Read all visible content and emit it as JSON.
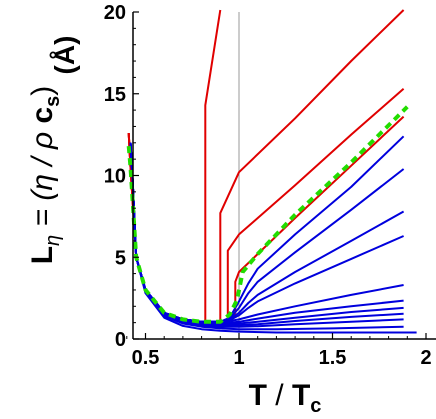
{
  "chart_data": {
    "type": "line",
    "xlabel": {
      "main": "T",
      "slash": " / ",
      "sub_main": "T",
      "sub": "c"
    },
    "ylabel": {
      "L": "L",
      "L_sub": "η",
      "eq": " = (η / ρ ",
      "c": "c",
      "c_sub": "s",
      "close": ")",
      "unit": "(Å)"
    },
    "xlim": [
      0.3,
      2.0
    ],
    "ylim": [
      0,
      20
    ],
    "xticks": [
      {
        "v": 0.5,
        "label": "0.5"
      },
      {
        "v": 1.0,
        "label": "1"
      },
      {
        "v": 1.5,
        "label": "1.5"
      },
      {
        "v": 2.0,
        "label": "2"
      }
    ],
    "yticks": [
      {
        "v": 0,
        "label": "0"
      },
      {
        "v": 5,
        "label": "5"
      },
      {
        "v": 10,
        "label": "10"
      },
      {
        "v": 15,
        "label": "15"
      },
      {
        "v": 20,
        "label": "20"
      }
    ],
    "vline_x": 1.0,
    "colors": {
      "red": "#e00000",
      "blue": "#0000dd",
      "green": "#22dd00",
      "grid": "#999999"
    },
    "common_low_T": {
      "x": [
        0.42,
        0.44,
        0.47,
        0.5,
        0.55,
        0.6,
        0.65,
        0.7,
        0.75,
        0.8
      ],
      "y": [
        12.0,
        7.2,
        4.0,
        2.9,
        2.0,
        1.55,
        1.3,
        1.15,
        1.08,
        1.05
      ]
    },
    "series": [
      {
        "color": "red",
        "style": "solid",
        "x": [
          0.41,
          0.42,
          0.45,
          0.5,
          0.6,
          0.7,
          0.8,
          0.82,
          0.82,
          0.9
        ],
        "y": [
          12.6,
          10.5,
          5.0,
          3.0,
          1.6,
          1.2,
          1.05,
          1.05,
          14.3,
          20.5
        ]
      },
      {
        "color": "red",
        "style": "solid",
        "x": [
          0.41,
          0.42,
          0.45,
          0.5,
          0.6,
          0.7,
          0.8,
          0.88,
          0.9,
          0.9,
          1.0,
          1.3,
          1.6,
          1.88
        ],
        "y": [
          12.6,
          10.5,
          5.0,
          3.0,
          1.6,
          1.2,
          1.05,
          1.05,
          1.05,
          7.7,
          10.2,
          13.5,
          17.0,
          20.3
        ]
      },
      {
        "color": "red",
        "style": "solid",
        "x": [
          0.41,
          0.42,
          0.45,
          0.5,
          0.6,
          0.7,
          0.8,
          0.9,
          0.94,
          0.94,
          1.0,
          1.3,
          1.6,
          1.88
        ],
        "y": [
          12.6,
          10.5,
          5.0,
          3.0,
          1.6,
          1.2,
          1.05,
          1.05,
          1.15,
          5.4,
          6.4,
          9.4,
          12.5,
          15.3
        ]
      },
      {
        "color": "red",
        "style": "solid",
        "x": [
          0.41,
          0.42,
          0.45,
          0.5,
          0.6,
          0.7,
          0.8,
          0.9,
          0.96,
          0.98,
          0.98,
          1.0,
          1.1,
          1.3,
          1.6,
          1.88
        ],
        "y": [
          12.6,
          10.5,
          5.0,
          3.0,
          1.6,
          1.2,
          1.05,
          1.05,
          1.3,
          1.6,
          3.5,
          4.1,
          5.2,
          7.4,
          10.6,
          13.6
        ]
      },
      {
        "color": "green",
        "style": "dashed",
        "x": [
          0.41,
          0.42,
          0.45,
          0.5,
          0.6,
          0.7,
          0.8,
          0.9,
          0.95,
          0.99,
          1.02,
          1.1,
          1.3,
          1.6,
          1.9
        ],
        "y": [
          11.8,
          10.5,
          5.0,
          3.0,
          1.6,
          1.2,
          1.05,
          1.05,
          1.5,
          2.4,
          4.1,
          5.2,
          7.6,
          10.8,
          14.2
        ]
      },
      {
        "color": "blue",
        "style": "solid",
        "x": [
          0.42,
          0.43,
          0.45,
          0.5,
          0.6,
          0.7,
          0.8,
          0.9,
          0.95,
          1.0,
          1.05,
          1.1,
          1.3,
          1.6,
          1.88
        ],
        "y": [
          12.0,
          10.0,
          5.0,
          3.0,
          1.6,
          1.2,
          1.05,
          1.05,
          1.3,
          2.3,
          3.4,
          4.3,
          6.4,
          9.3,
          12.4
        ]
      },
      {
        "color": "blue",
        "style": "solid",
        "x": [
          0.42,
          0.43,
          0.45,
          0.5,
          0.6,
          0.7,
          0.8,
          0.9,
          0.95,
          1.0,
          1.05,
          1.1,
          1.3,
          1.6,
          1.88
        ],
        "y": [
          12.0,
          10.0,
          5.0,
          3.0,
          1.6,
          1.2,
          1.05,
          1.05,
          1.25,
          1.9,
          2.8,
          3.5,
          5.3,
          7.9,
          10.4
        ]
      },
      {
        "color": "blue",
        "style": "solid",
        "x": [
          0.42,
          0.43,
          0.45,
          0.5,
          0.6,
          0.7,
          0.8,
          0.9,
          0.95,
          1.0,
          1.05,
          1.1,
          1.3,
          1.6,
          1.88
        ],
        "y": [
          12.0,
          10.0,
          5.0,
          3.0,
          1.6,
          1.2,
          1.05,
          1.05,
          1.2,
          1.6,
          2.2,
          2.7,
          4.1,
          6.0,
          7.8
        ]
      },
      {
        "color": "blue",
        "style": "solid",
        "x": [
          0.42,
          0.43,
          0.45,
          0.5,
          0.6,
          0.7,
          0.8,
          0.9,
          0.95,
          1.0,
          1.05,
          1.1,
          1.3,
          1.6,
          1.88
        ],
        "y": [
          12.0,
          10.0,
          5.0,
          3.0,
          1.6,
          1.2,
          1.05,
          1.05,
          1.15,
          1.45,
          1.9,
          2.3,
          3.4,
          4.9,
          6.3
        ]
      },
      {
        "color": "blue",
        "style": "solid",
        "x": [
          0.42,
          0.43,
          0.45,
          0.5,
          0.6,
          0.7,
          0.8,
          0.9,
          0.95,
          1.0,
          1.1,
          1.3,
          1.6,
          1.88
        ],
        "y": [
          12.0,
          10.0,
          5.0,
          3.0,
          1.6,
          1.2,
          1.05,
          1.05,
          1.1,
          1.2,
          1.5,
          2.0,
          2.7,
          3.3
        ]
      },
      {
        "color": "blue",
        "style": "solid",
        "x": [
          0.42,
          0.43,
          0.45,
          0.5,
          0.6,
          0.7,
          0.8,
          0.9,
          0.95,
          1.0,
          1.1,
          1.3,
          1.6,
          1.88
        ],
        "y": [
          12.0,
          10.0,
          5.0,
          3.0,
          1.6,
          1.2,
          1.05,
          1.0,
          1.0,
          1.05,
          1.25,
          1.6,
          2.0,
          2.35
        ]
      },
      {
        "color": "blue",
        "style": "solid",
        "x": [
          0.42,
          0.43,
          0.45,
          0.5,
          0.6,
          0.7,
          0.8,
          0.9,
          1.0,
          1.1,
          1.3,
          1.6,
          1.88
        ],
        "y": [
          12.0,
          10.0,
          5.0,
          3.0,
          1.6,
          1.2,
          1.0,
          0.95,
          0.95,
          1.05,
          1.3,
          1.65,
          1.9
        ]
      },
      {
        "color": "blue",
        "style": "solid",
        "x": [
          0.42,
          0.43,
          0.45,
          0.5,
          0.6,
          0.7,
          0.8,
          0.9,
          1.0,
          1.1,
          1.3,
          1.6,
          1.88
        ],
        "y": [
          12.0,
          10.0,
          5.0,
          3.0,
          1.55,
          1.15,
          0.95,
          0.85,
          0.85,
          0.9,
          1.1,
          1.35,
          1.55
        ]
      },
      {
        "color": "blue",
        "style": "solid",
        "x": [
          0.42,
          0.43,
          0.45,
          0.5,
          0.6,
          0.7,
          0.8,
          0.9,
          1.0,
          1.1,
          1.3,
          1.6,
          1.88
        ],
        "y": [
          12.0,
          10.0,
          5.0,
          3.0,
          1.5,
          1.05,
          0.85,
          0.75,
          0.75,
          0.78,
          0.9,
          1.05,
          1.2
        ]
      },
      {
        "color": "blue",
        "style": "solid",
        "x": [
          0.42,
          0.43,
          0.45,
          0.5,
          0.6,
          0.7,
          0.8,
          0.9,
          1.0,
          1.2,
          1.5,
          1.88
        ],
        "y": [
          12.0,
          10.0,
          5.0,
          2.9,
          1.4,
          0.95,
          0.75,
          0.65,
          0.6,
          0.6,
          0.65,
          0.75
        ]
      },
      {
        "color": "blue",
        "style": "solid",
        "x": [
          0.42,
          0.43,
          0.45,
          0.5,
          0.6,
          0.7,
          0.8,
          0.9,
          1.0,
          1.2,
          1.5,
          1.95
        ],
        "y": [
          12.0,
          10.0,
          5.0,
          2.8,
          1.3,
          0.8,
          0.6,
          0.5,
          0.45,
          0.4,
          0.4,
          0.4
        ]
      }
    ]
  }
}
